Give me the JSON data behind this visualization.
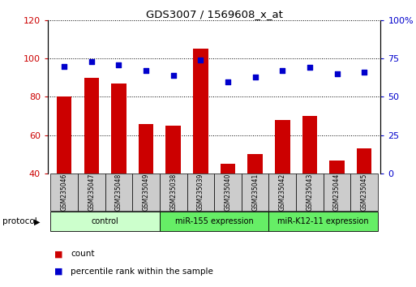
{
  "title": "GDS3007 / 1569608_x_at",
  "categories": [
    "GSM235046",
    "GSM235047",
    "GSM235048",
    "GSM235049",
    "GSM235038",
    "GSM235039",
    "GSM235040",
    "GSM235041",
    "GSM235042",
    "GSM235043",
    "GSM235044",
    "GSM235045"
  ],
  "bar_values": [
    80,
    90,
    87,
    66,
    65,
    105,
    45,
    50,
    68,
    70,
    47,
    53
  ],
  "scatter_pct": [
    70,
    73,
    71,
    67,
    64,
    74,
    60,
    63,
    67,
    69,
    65,
    66
  ],
  "bar_color": "#cc0000",
  "scatter_color": "#0000cc",
  "ylim_left": [
    40,
    120
  ],
  "ylim_right": [
    0,
    100
  ],
  "yticks_left": [
    40,
    60,
    80,
    100,
    120
  ],
  "ytick_labels_right": [
    "0",
    "25",
    "50",
    "75",
    "100%"
  ],
  "yticks_right_vals": [
    0,
    25,
    50,
    75,
    100
  ],
  "group_defs": [
    {
      "start": 0,
      "end": 3,
      "label": "control",
      "color": "#ccffcc"
    },
    {
      "start": 4,
      "end": 7,
      "label": "miR-155 expression",
      "color": "#66ee66"
    },
    {
      "start": 8,
      "end": 11,
      "label": "miR-K12-11 expression",
      "color": "#66ee66"
    }
  ],
  "protocol_label": "protocol",
  "legend_count_label": "count",
  "legend_pct_label": "percentile rank within the sample",
  "label_box_color": "#cccccc",
  "tick_color_left": "#cc0000",
  "tick_color_right": "#0000cc"
}
